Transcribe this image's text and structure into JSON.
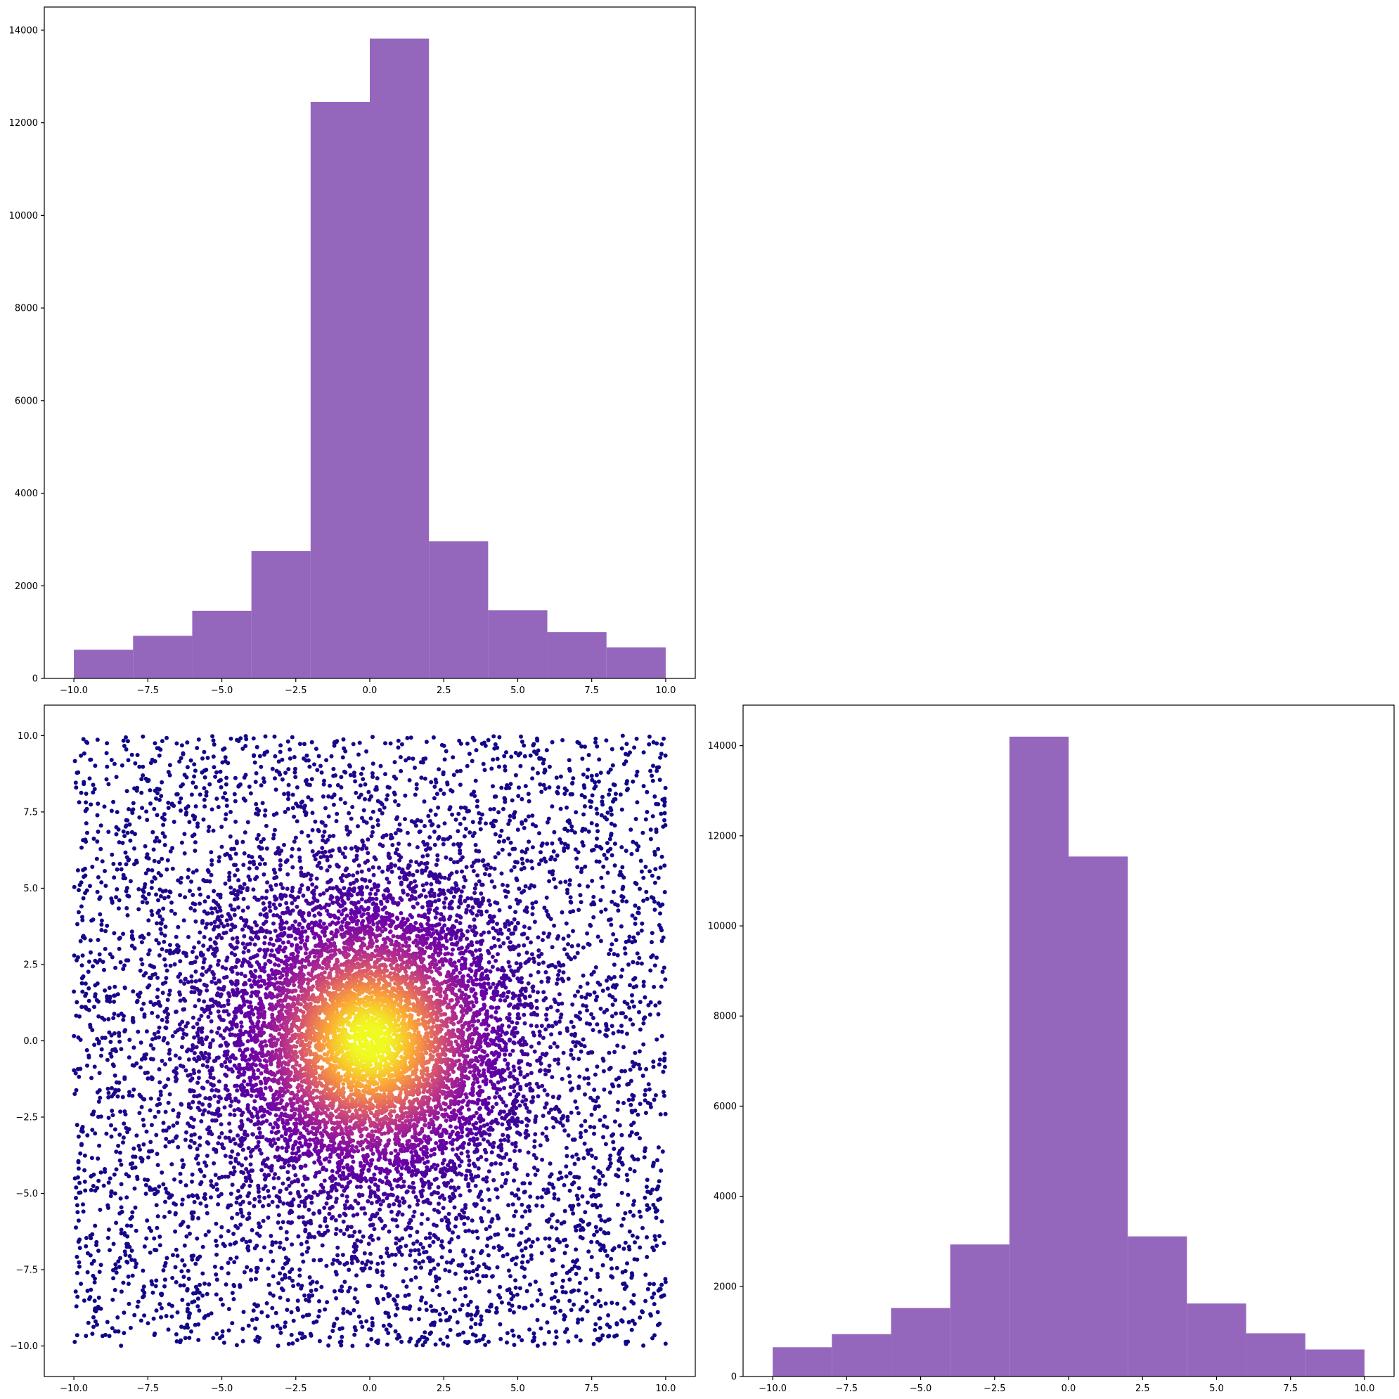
{
  "chart_data": [
    {
      "id": "hist-x",
      "type": "bar",
      "title": "",
      "xlabel": "",
      "ylabel": "",
      "bin_edges": [
        -10,
        -8,
        -6,
        -4,
        -2,
        0,
        2,
        4,
        6,
        8,
        10
      ],
      "values": [
        620,
        920,
        1460,
        2750,
        12450,
        13820,
        2960,
        1470,
        1000,
        670
      ],
      "xlim": [
        -11,
        11
      ],
      "ylim": [
        0,
        14500
      ],
      "xticks": [
        -10,
        -7.5,
        -5,
        -2.5,
        0,
        2.5,
        5,
        7.5,
        10
      ],
      "xtick_labels": [
        "−10.0",
        "−7.5",
        "−5.0",
        "−2.5",
        "0.0",
        "2.5",
        "5.0",
        "7.5",
        "10.0"
      ],
      "yticks": [
        0,
        2000,
        4000,
        6000,
        8000,
        10000,
        12000,
        14000
      ],
      "ytick_labels": [
        "0",
        "2000",
        "4000",
        "6000",
        "8000",
        "10000",
        "12000",
        "14000"
      ],
      "color": "#9467bd",
      "grid": false
    },
    {
      "id": "scatter-xy",
      "type": "scatter",
      "title": "",
      "xlabel": "",
      "ylabel": "",
      "xlim": [
        -11,
        11
      ],
      "ylim": [
        -11,
        11
      ],
      "xticks": [
        -10,
        -7.5,
        -5,
        -2.5,
        0,
        2.5,
        5,
        7.5,
        10
      ],
      "xtick_labels": [
        "−10.0",
        "−7.5",
        "−5.0",
        "−2.5",
        "0.0",
        "2.5",
        "5.0",
        "7.5",
        "10.0"
      ],
      "yticks": [
        -10,
        -7.5,
        -5,
        -2.5,
        0,
        2.5,
        5,
        7.5,
        10
      ],
      "ytick_labels": [
        "−10.0",
        "−7.5",
        "−5.0",
        "−2.5",
        "0.0",
        "2.5",
        "5.0",
        "7.5",
        "10.0"
      ],
      "point_count": 12000,
      "distribution": "uniform on [-10, 10] square mixed with dense gaussian core at origin",
      "colormap": "plasma",
      "colormap_stops": [
        "#0d0887",
        "#6a00a8",
        "#b12a90",
        "#e16462",
        "#fca636",
        "#f0f921"
      ],
      "grid": false
    },
    {
      "id": "hist-y",
      "type": "bar",
      "title": "",
      "xlabel": "",
      "ylabel": "",
      "bin_edges": [
        -10,
        -8,
        -6,
        -4,
        -2,
        0,
        2,
        4,
        6,
        8,
        10
      ],
      "values": [
        650,
        940,
        1520,
        2930,
        14200,
        11540,
        3110,
        1620,
        960,
        600
      ],
      "xlim": [
        -11,
        11
      ],
      "ylim": [
        0,
        14900
      ],
      "xticks": [
        -10,
        -7.5,
        -5,
        -2.5,
        0,
        2.5,
        5,
        7.5,
        10
      ],
      "xtick_labels": [
        "−10.0",
        "−7.5",
        "−5.0",
        "−2.5",
        "0.0",
        "2.5",
        "5.0",
        "7.5",
        "10.0"
      ],
      "yticks": [
        0,
        2000,
        4000,
        6000,
        8000,
        10000,
        12000,
        14000
      ],
      "ytick_labels": [
        "0",
        "2000",
        "4000",
        "6000",
        "8000",
        "10000",
        "12000",
        "14000"
      ],
      "color": "#9467bd",
      "grid": false
    }
  ]
}
